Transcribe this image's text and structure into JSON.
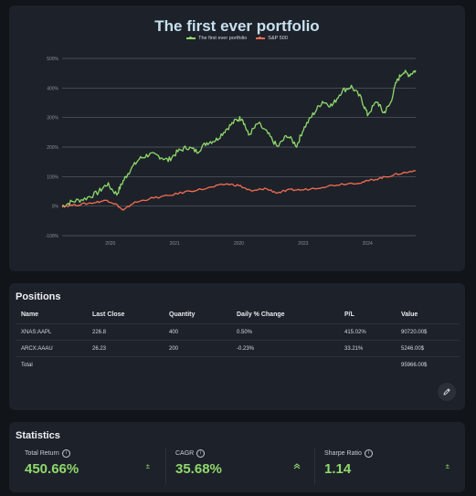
{
  "chart": {
    "title": "The first ever portfolio",
    "legend": [
      {
        "name": "The first ever portfolio",
        "color": "#8fd96b"
      },
      {
        "name": "S&P 500",
        "color": "#f26d50"
      }
    ]
  },
  "chart_data": {
    "type": "line",
    "title": "The first ever portfolio",
    "xlabel": "",
    "ylabel": "",
    "y_ticks": [
      "-100%",
      "0%",
      "100%",
      "200%",
      "300%",
      "400%",
      "500%"
    ],
    "x_ticks": [
      "2020",
      "2021",
      "2020",
      "2023",
      "2024"
    ],
    "ylim": [
      -100,
      500
    ],
    "x_range": [
      2019.25,
      2024.75
    ],
    "legend_placement": "top-center",
    "grid": true,
    "series": [
      {
        "name": "The first ever portfolio",
        "color": "#8fd96b",
        "x": [
          2019.25,
          2019.4,
          2019.6,
          2019.8,
          2019.95,
          2020.1,
          2020.2,
          2020.3,
          2020.45,
          2020.6,
          2020.75,
          2020.9,
          2021.05,
          2021.2,
          2021.35,
          2021.5,
          2021.65,
          2021.8,
          2021.95,
          2022.05,
          2022.15,
          2022.3,
          2022.45,
          2022.6,
          2022.75,
          2022.9,
          2023.0,
          2023.15,
          2023.3,
          2023.45,
          2023.6,
          2023.75,
          2023.9,
          2024.0,
          2024.15,
          2024.25,
          2024.35,
          2024.45,
          2024.55,
          2024.65,
          2024.75
        ],
        "values": [
          0,
          15,
          25,
          45,
          75,
          40,
          85,
          120,
          160,
          175,
          170,
          155,
          185,
          200,
          185,
          215,
          225,
          260,
          290,
          300,
          240,
          280,
          245,
          200,
          240,
          205,
          260,
          310,
          355,
          340,
          390,
          405,
          365,
          310,
          355,
          315,
          345,
          420,
          455,
          445,
          460
        ]
      },
      {
        "name": "S&P 500",
        "color": "#f26d50",
        "x": [
          2019.25,
          2019.5,
          2019.75,
          2019.95,
          2020.1,
          2020.2,
          2020.35,
          2020.6,
          2020.9,
          2021.2,
          2021.5,
          2021.8,
          2022.0,
          2022.2,
          2022.4,
          2022.6,
          2022.8,
          2023.0,
          2023.3,
          2023.6,
          2023.9,
          2024.1,
          2024.3,
          2024.5,
          2024.75
        ],
        "values": [
          0,
          5,
          12,
          20,
          5,
          -15,
          10,
          25,
          35,
          50,
          60,
          75,
          70,
          50,
          60,
          45,
          55,
          55,
          65,
          75,
          80,
          90,
          100,
          110,
          120
        ]
      }
    ]
  },
  "positions": {
    "title": "Positions",
    "columns": [
      "Name",
      "Last Close",
      "Quantity",
      "Daily % Change",
      "P/L",
      "Value"
    ],
    "rows": [
      [
        "XNAS:AAPL",
        "226.8",
        "400",
        "0.50%",
        "415.02%",
        "90720.00$"
      ],
      [
        "ARCX:AAAU",
        "26.23",
        "200",
        "-0.23%",
        "33.21%",
        "5246.00$"
      ],
      [
        "Total",
        "",
        "",
        "",
        "",
        "95966.00$"
      ]
    ],
    "edit_icon": "pencil-icon"
  },
  "statistics": {
    "title": "Statistics",
    "items": [
      {
        "label": "Total Return",
        "value": "450.66%",
        "icon": "plus-minus-icon"
      },
      {
        "label": "CAGR",
        "value": "35.68%",
        "icon": "double-chevron-up-icon"
      },
      {
        "label": "Sharpe Ratio",
        "value": "1.14",
        "icon": "plus-minus-icon"
      }
    ],
    "accent": "#8fd96b"
  }
}
